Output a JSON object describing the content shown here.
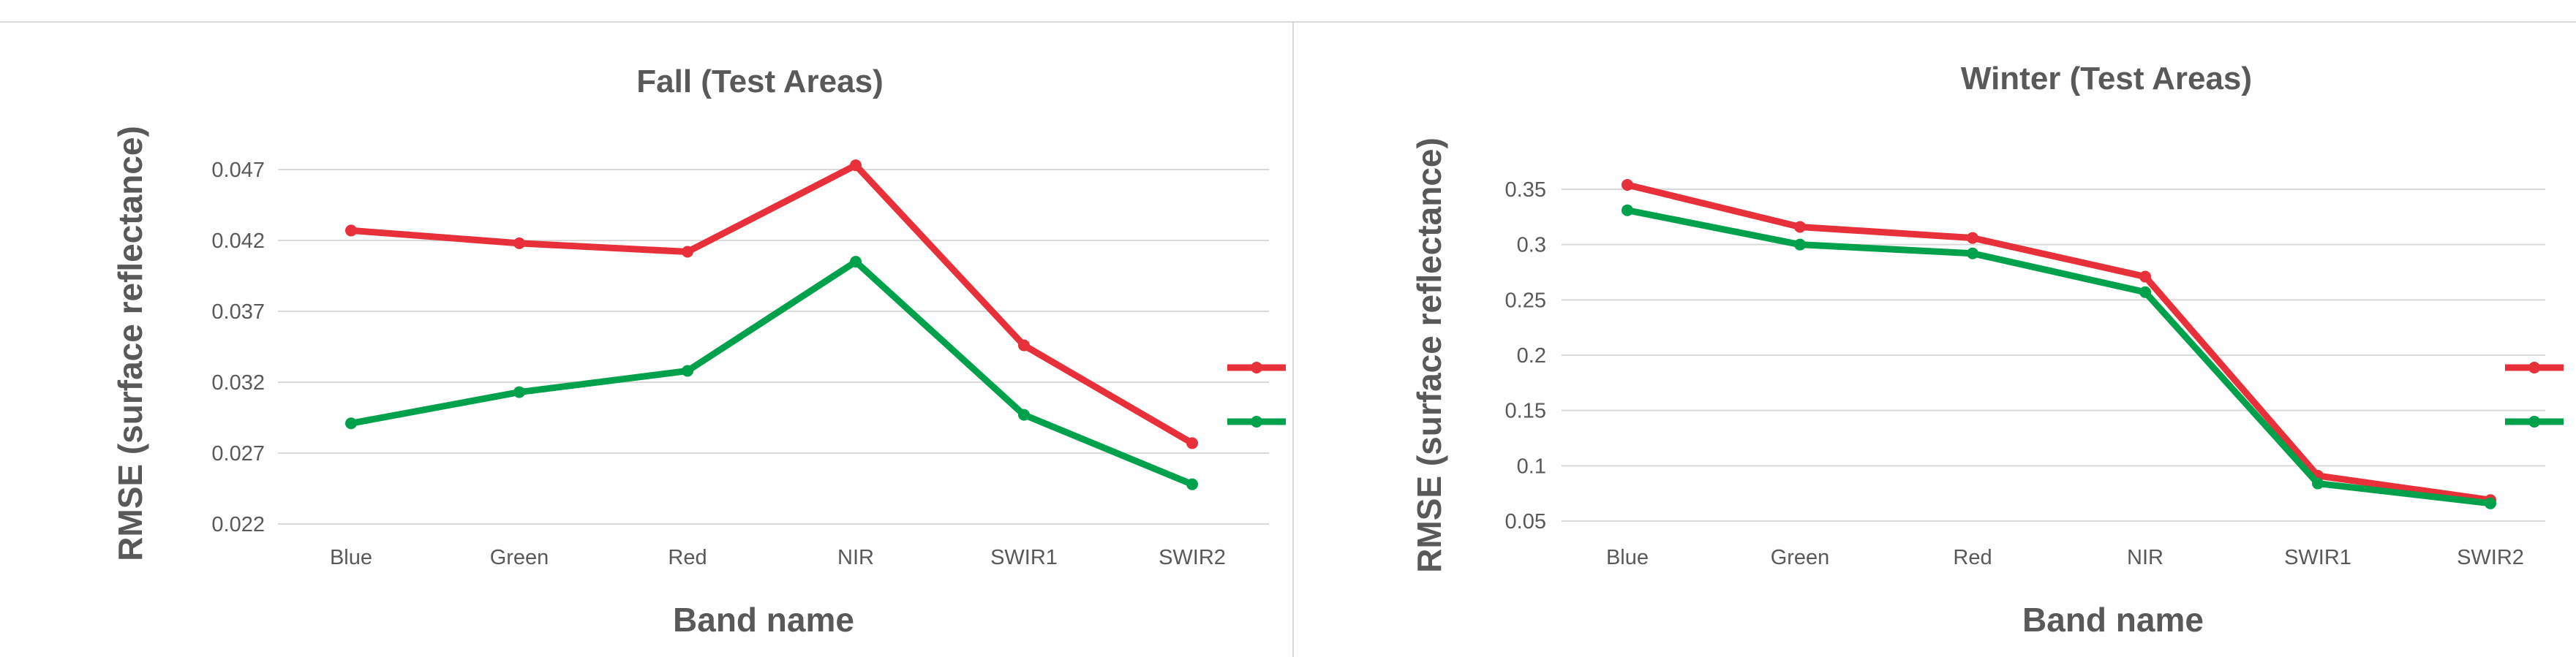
{
  "chart_data": [
    {
      "type": "line",
      "title": "Fall (Test Areas)",
      "xlabel": "Band name",
      "ylabel": "RMSE (surface reflectance)",
      "categories": [
        "Blue",
        "Green",
        "Red",
        "NIR",
        "SWIR1",
        "SWIR2"
      ],
      "yticks": [
        "0.022",
        "0.027",
        "0.032",
        "0.037",
        "0.042",
        "0.047"
      ],
      "ylim": [
        0.022,
        0.047
      ],
      "grid": true,
      "legend": "right",
      "series": [
        {
          "values": [
            0.0427,
            0.0418,
            0.0412,
            0.0473,
            0.0346,
            0.0277
          ],
          "color": "#e8303a"
        },
        {
          "values": [
            0.0291,
            0.0313,
            0.0328,
            0.0405,
            0.0297,
            0.0248
          ],
          "color": "#00a14b"
        }
      ]
    },
    {
      "type": "line",
      "title": "Winter (Test Areas)",
      "xlabel": "Band name",
      "ylabel": "RMSE (surface reflectance)",
      "categories": [
        "Blue",
        "Green",
        "Red",
        "NIR",
        "SWIR1",
        "SWIR2"
      ],
      "yticks": [
        "0.05",
        "0.1",
        "0.15",
        "0.2",
        "0.25",
        "0.3",
        "0.35"
      ],
      "ylim": [
        0.05,
        0.35
      ],
      "grid": true,
      "legend": "right",
      "series": [
        {
          "values": [
            0.354,
            0.316,
            0.306,
            0.271,
            0.091,
            0.069
          ],
          "color": "#e8303a"
        },
        {
          "values": [
            0.331,
            0.3,
            0.292,
            0.257,
            0.084,
            0.066
          ],
          "color": "#00a14b"
        }
      ]
    }
  ]
}
